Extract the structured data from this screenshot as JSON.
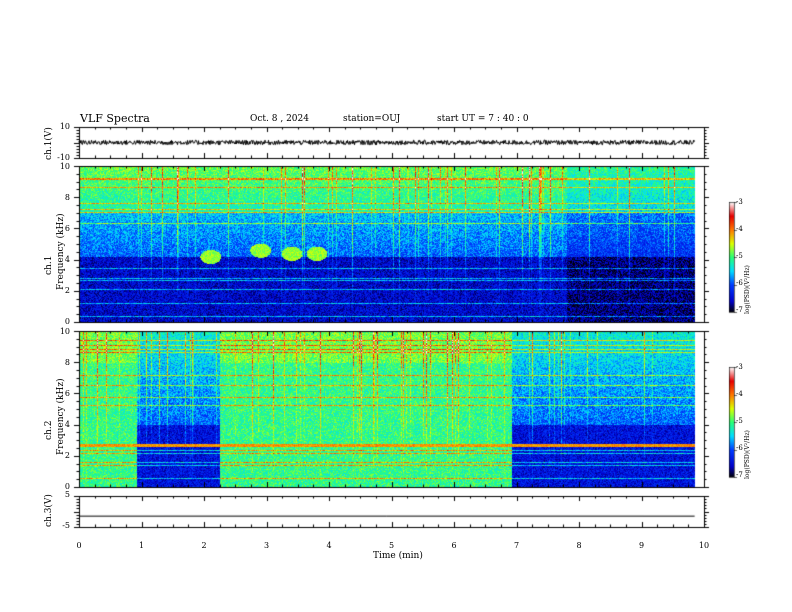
{
  "header": {
    "title": "VLF Spectra",
    "date": "Oct. 8 , 2024",
    "station": "station=OUJ",
    "start": "start UT =  7 : 40 : 0"
  },
  "panels": {
    "ch1_wave_label": "ch.1(V)",
    "ch1_wave_ticks": [
      "10",
      "-10"
    ],
    "ch1_spec_label": "ch.1",
    "ch2_spec_label": "ch.2",
    "freq_label": "Frequency (kHz)",
    "freq_ticks": [
      "10",
      "8",
      "6",
      "4",
      "2",
      "0"
    ],
    "ch3_wave_label": "ch.3(V)",
    "ch3_wave_ticks": [
      "5",
      "-5"
    ]
  },
  "xaxis": {
    "label": "Time (min)",
    "ticks": [
      "0",
      "1",
      "2",
      "3",
      "4",
      "5",
      "6",
      "7",
      "8",
      "9",
      "10"
    ]
  },
  "colorbar": {
    "label": "log(PSD)(V²/Hz)",
    "ticks": [
      "-3",
      "-4",
      "-5",
      "-6",
      "-7"
    ],
    "colors": [
      "#ffffff",
      "#ff0000",
      "#ffff00",
      "#00ff00",
      "#00ffff",
      "#0000ff",
      "#000000"
    ]
  },
  "chart_data": [
    {
      "type": "line",
      "channel": "ch.1",
      "ylabel": "ch.1(V)",
      "ylim": [
        -10,
        10
      ],
      "xlim": [
        0,
        10
      ],
      "x_unit": "min",
      "mean": 0,
      "amplitude": 1.5
    },
    {
      "type": "heatmap",
      "channel": "ch.1",
      "xlabel": "Time (min)",
      "ylabel": "Frequency (kHz)",
      "xlim": [
        0,
        10
      ],
      "ylim": [
        0,
        10
      ],
      "zlim": [
        -7,
        -3
      ],
      "data_end_min": 9.85,
      "features": [
        {
          "kind": "band",
          "f_low": 0.0,
          "f_high": 4.2,
          "level": -6.5
        },
        {
          "kind": "band",
          "f_low": 4.2,
          "f_high": 7.0,
          "level": -5.8
        },
        {
          "kind": "band",
          "f_low": 7.0,
          "f_high": 10.0,
          "level": -5.0
        },
        {
          "kind": "burst",
          "t": 2.1,
          "f": 4.2,
          "level": -4.6
        },
        {
          "kind": "burst",
          "t": 2.9,
          "f": 4.6,
          "level": -4.8
        },
        {
          "kind": "burst",
          "t": 3.8,
          "f": 4.4,
          "level": -4.8
        }
      ]
    },
    {
      "type": "heatmap",
      "channel": "ch.2",
      "xlabel": "Time (min)",
      "ylabel": "Frequency (kHz)",
      "xlim": [
        0,
        10
      ],
      "ylim": [
        0,
        10
      ],
      "zlim": [
        -7,
        -3
      ],
      "data_end_min": 9.85,
      "features": [
        {
          "kind": "elevated",
          "t_start": 0.0,
          "t_end": 0.92,
          "level": -5.0
        },
        {
          "kind": "quiet",
          "t_start": 0.92,
          "t_end": 2.25,
          "level": -6.3
        },
        {
          "kind": "elevated",
          "t_start": 2.25,
          "t_end": 6.92,
          "level": -5.0
        },
        {
          "kind": "quiet",
          "t_start": 6.92,
          "t_end": 9.85,
          "level": -6.0
        },
        {
          "kind": "line",
          "f": 2.7,
          "level": -4.0
        },
        {
          "kind": "line",
          "f": 5.2,
          "level": -4.6
        }
      ]
    },
    {
      "type": "line",
      "channel": "ch.3",
      "ylabel": "ch.3(V)",
      "ylim": [
        -5,
        5
      ],
      "xlim": [
        0,
        10
      ],
      "x_unit": "min",
      "value": -1.5
    }
  ]
}
